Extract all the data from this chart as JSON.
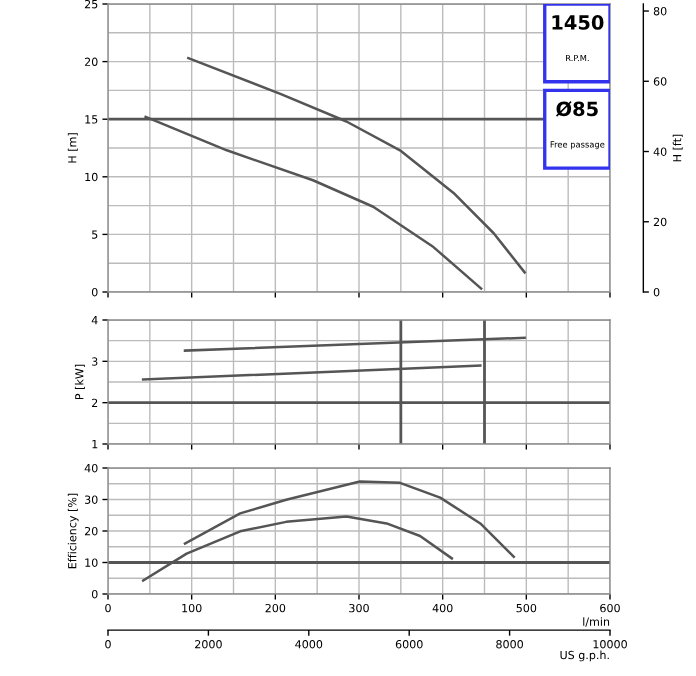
{
  "chart_data": [
    {
      "type": "line",
      "ylabel": "H [m]",
      "y2label": "H [ft]",
      "xlim": [
        0,
        600
      ],
      "xticks": [
        0,
        100,
        200,
        300,
        400,
        500,
        600
      ],
      "ylim": [
        0,
        25
      ],
      "yticks": [
        0,
        5,
        10,
        15,
        20,
        25
      ],
      "y2lim": [
        0,
        82
      ],
      "y2ticks": [
        0,
        20,
        40,
        60,
        80
      ],
      "grid": true,
      "tick_labels": "y",
      "marker": "none",
      "line_style": "solid",
      "annotations": [
        "1450",
        "R.P.M.",
        "Ø85",
        "Free passage"
      ],
      "ref_lines": [
        {
          "axis": "y",
          "value": 15,
          "color": "#555555"
        }
      ],
      "series": [
        {
          "color": "#555555",
          "x": [
            96,
            206,
            285,
            349,
            413,
            461,
            498
          ],
          "values": [
            20.3,
            17.2,
            14.8,
            12.3,
            8.6,
            5.1,
            1.7
          ]
        },
        {
          "color": "#555555",
          "x": [
            45,
            142,
            245,
            317,
            389,
            446
          ],
          "values": [
            15.2,
            12.3,
            9.7,
            7.4,
            3.9,
            0.3
          ]
        }
      ]
    },
    {
      "type": "line",
      "ylabel": "P [kW]",
      "xlim": [
        0,
        600
      ],
      "xticks": [
        0,
        100,
        200,
        300,
        400,
        500,
        600
      ],
      "ylim": [
        1,
        4
      ],
      "yticks": [
        1,
        2,
        3,
        4
      ],
      "grid": true,
      "tick_labels": "y",
      "marker": "none",
      "line_style": "solid",
      "ref_lines": [
        {
          "axis": "y",
          "value": 2,
          "color": "#555555"
        },
        {
          "axis": "x",
          "value": 350,
          "color": "#555555"
        },
        {
          "axis": "x",
          "value": 450,
          "color": "#555555"
        }
      ],
      "series": [
        {
          "color": "#555555",
          "x": [
            92,
            498
          ],
          "values": [
            3.26,
            3.57
          ]
        },
        {
          "color": "#555555",
          "x": [
            42,
            445
          ],
          "values": [
            2.56,
            2.9
          ]
        }
      ]
    },
    {
      "type": "line",
      "ylabel": "Efficiency [%]",
      "xlabel": "l/min",
      "x2label": "US g.p.h.",
      "xlim": [
        0,
        600
      ],
      "xticks": [
        0,
        100,
        200,
        300,
        400,
        500,
        600
      ],
      "x2lim": [
        0,
        10000
      ],
      "x2ticks": [
        0,
        2000,
        4000,
        6000,
        8000,
        10000
      ],
      "ylim": [
        0,
        40
      ],
      "yticks": [
        0,
        10,
        20,
        30,
        40
      ],
      "grid": true,
      "marker": "none",
      "line_style": "solid",
      "ref_lines": [
        {
          "axis": "y",
          "value": 10,
          "color": "#555555"
        }
      ],
      "series": [
        {
          "color": "#555555",
          "x": [
            92,
            158,
            213,
            301,
            349,
            397,
            445,
            485
          ],
          "values": [
            16.0,
            25.6,
            29.9,
            35.7,
            35.3,
            30.6,
            22.4,
            11.8
          ]
        },
        {
          "color": "#555555",
          "x": [
            42,
            94,
            158,
            213,
            285,
            333,
            373,
            411
          ],
          "values": [
            4.3,
            12.8,
            19.9,
            22.9,
            24.6,
            22.4,
            18.4,
            11.3
          ]
        }
      ]
    }
  ]
}
